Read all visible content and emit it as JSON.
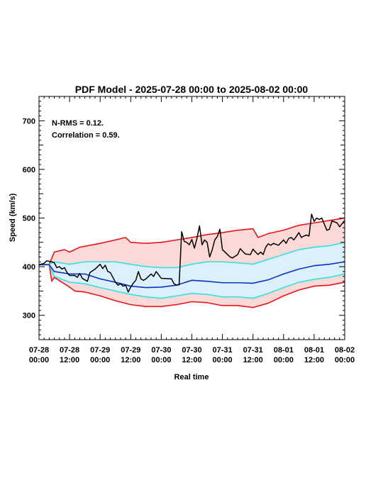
{
  "chart_data": {
    "type": "line",
    "title": "PDF Model - 2025-07-28 00:00 to 2025-08-02 00:00",
    "xlabel": "Real time",
    "ylabel": "Speed (km/s)",
    "xlim": [
      "2025-07-28 00:00",
      "2025-08-02 00:00"
    ],
    "ylim": [
      250,
      750
    ],
    "yticks": [
      300,
      400,
      500,
      600,
      700
    ],
    "xticks": [
      {
        "line1": "07-28",
        "line2": "00:00",
        "t": "2025-07-28 00:00"
      },
      {
        "line1": "07-28",
        "line2": "12:00",
        "t": "2025-07-28 12:00"
      },
      {
        "line1": "07-29",
        "line2": "00:00",
        "t": "2025-07-29 00:00"
      },
      {
        "line1": "07-29",
        "line2": "12:00",
        "t": "2025-07-29 12:00"
      },
      {
        "line1": "07-30",
        "line2": "00:00",
        "t": "2025-07-30 00:00"
      },
      {
        "line1": "07-30",
        "line2": "12:00",
        "t": "2025-07-30 12:00"
      },
      {
        "line1": "07-31",
        "line2": "00:00",
        "t": "2025-07-31 00:00"
      },
      {
        "line1": "07-31",
        "line2": "12:00",
        "t": "2025-07-31 12:00"
      },
      {
        "line1": "08-01",
        "line2": "00:00",
        "t": "2025-08-01 00:00"
      },
      {
        "line1": "08-01",
        "line2": "12:00",
        "t": "2025-08-01 12:00"
      },
      {
        "line1": "08-02",
        "line2": "00:00",
        "t": "2025-08-02 00:00"
      }
    ],
    "annotations": [
      "N-RMS = 0.12.",
      "Correlation = 0.59."
    ],
    "grid": false,
    "colors": {
      "outer_band": "#e8141c",
      "outer_fill": "#fbd9d6",
      "inner_band": "#33e0e0",
      "inner_fill": "#dcf0fb",
      "median": "#1030c0",
      "observed": "#000000"
    },
    "series": [
      {
        "role": "outer_upper",
        "color": "#e8141c",
        "points": [
          [
            "2025-07-28 00:00",
            404
          ],
          [
            "2025-07-28 04:00",
            405
          ],
          [
            "2025-07-28 06:00",
            430
          ],
          [
            "2025-07-28 10:00",
            435
          ],
          [
            "2025-07-28 12:00",
            430
          ],
          [
            "2025-07-28 16:00",
            440
          ],
          [
            "2025-07-29 00:00",
            448
          ],
          [
            "2025-07-29 06:00",
            455
          ],
          [
            "2025-07-29 10:00",
            460
          ],
          [
            "2025-07-29 12:00",
            450
          ],
          [
            "2025-07-29 18:00",
            448
          ],
          [
            "2025-07-30 00:00",
            450
          ],
          [
            "2025-07-30 06:00",
            455
          ],
          [
            "2025-07-30 12:00",
            460
          ],
          [
            "2025-07-30 18:00",
            466
          ],
          [
            "2025-07-31 00:00",
            470
          ],
          [
            "2025-07-31 06:00",
            475
          ],
          [
            "2025-07-31 12:00",
            478
          ],
          [
            "2025-07-31 14:00",
            460
          ],
          [
            "2025-07-31 18:00",
            468
          ],
          [
            "2025-08-01 00:00",
            475
          ],
          [
            "2025-08-01 06:00",
            485
          ],
          [
            "2025-08-01 12:00",
            490
          ],
          [
            "2025-08-01 18:00",
            495
          ],
          [
            "2025-08-02 00:00",
            500
          ]
        ]
      },
      {
        "role": "inner_upper",
        "color": "#33e0e0",
        "points": [
          [
            "2025-07-28 00:00",
            404
          ],
          [
            "2025-07-28 04:00",
            405
          ],
          [
            "2025-07-28 06:00",
            410
          ],
          [
            "2025-07-28 12:00",
            405
          ],
          [
            "2025-07-28 18:00",
            410
          ],
          [
            "2025-07-29 00:00",
            410
          ],
          [
            "2025-07-29 06:00",
            410
          ],
          [
            "2025-07-29 12:00",
            405
          ],
          [
            "2025-07-29 18:00",
            400
          ],
          [
            "2025-07-30 00:00",
            398
          ],
          [
            "2025-07-30 06:00",
            398
          ],
          [
            "2025-07-30 12:00",
            405
          ],
          [
            "2025-07-30 18:00",
            410
          ],
          [
            "2025-07-31 00:00",
            410
          ],
          [
            "2025-07-31 06:00",
            408
          ],
          [
            "2025-07-31 12:00",
            405
          ],
          [
            "2025-07-31 18:00",
            415
          ],
          [
            "2025-08-01 00:00",
            425
          ],
          [
            "2025-08-01 06:00",
            435
          ],
          [
            "2025-08-01 12:00",
            440
          ],
          [
            "2025-08-01 18:00",
            443
          ],
          [
            "2025-08-02 00:00",
            450
          ]
        ]
      },
      {
        "role": "median",
        "color": "#1030c0",
        "points": [
          [
            "2025-07-28 00:00",
            404
          ],
          [
            "2025-07-28 04:00",
            404
          ],
          [
            "2025-07-28 06:00",
            390
          ],
          [
            "2025-07-28 12:00",
            385
          ],
          [
            "2025-07-28 18:00",
            385
          ],
          [
            "2025-07-29 00:00",
            375
          ],
          [
            "2025-07-29 06:00",
            368
          ],
          [
            "2025-07-29 12:00",
            360
          ],
          [
            "2025-07-29 18:00",
            357
          ],
          [
            "2025-07-30 00:00",
            358
          ],
          [
            "2025-07-30 06:00",
            362
          ],
          [
            "2025-07-30 12:00",
            372
          ],
          [
            "2025-07-30 18:00",
            370
          ],
          [
            "2025-07-31 00:00",
            367
          ],
          [
            "2025-07-31 06:00",
            367
          ],
          [
            "2025-07-31 12:00",
            366
          ],
          [
            "2025-07-31 18:00",
            373
          ],
          [
            "2025-08-01 00:00",
            385
          ],
          [
            "2025-08-01 06:00",
            395
          ],
          [
            "2025-08-01 12:00",
            402
          ],
          [
            "2025-08-01 18:00",
            405
          ],
          [
            "2025-08-02 00:00",
            410
          ]
        ]
      },
      {
        "role": "inner_lower",
        "color": "#33e0e0",
        "points": [
          [
            "2025-07-28 00:00",
            404
          ],
          [
            "2025-07-28 04:00",
            404
          ],
          [
            "2025-07-28 06:00",
            380
          ],
          [
            "2025-07-28 12:00",
            368
          ],
          [
            "2025-07-28 18:00",
            365
          ],
          [
            "2025-07-29 00:00",
            357
          ],
          [
            "2025-07-29 06:00",
            350
          ],
          [
            "2025-07-29 12:00",
            343
          ],
          [
            "2025-07-29 18:00",
            338
          ],
          [
            "2025-07-30 00:00",
            335
          ],
          [
            "2025-07-30 06:00",
            340
          ],
          [
            "2025-07-30 12:00",
            345
          ],
          [
            "2025-07-30 18:00",
            343
          ],
          [
            "2025-07-31 00:00",
            338
          ],
          [
            "2025-07-31 06:00",
            338
          ],
          [
            "2025-07-31 12:00",
            335
          ],
          [
            "2025-07-31 18:00",
            345
          ],
          [
            "2025-08-01 00:00",
            357
          ],
          [
            "2025-08-01 06:00",
            368
          ],
          [
            "2025-08-01 12:00",
            374
          ],
          [
            "2025-08-01 18:00",
            378
          ],
          [
            "2025-08-02 00:00",
            385
          ]
        ]
      },
      {
        "role": "outer_lower",
        "color": "#e8141c",
        "points": [
          [
            "2025-07-28 00:00",
            404
          ],
          [
            "2025-07-28 04:00",
            404
          ],
          [
            "2025-07-28 05:00",
            370
          ],
          [
            "2025-07-28 06:00",
            378
          ],
          [
            "2025-07-28 12:00",
            358
          ],
          [
            "2025-07-28 14:00",
            350
          ],
          [
            "2025-07-28 18:00",
            348
          ],
          [
            "2025-07-29 00:00",
            340
          ],
          [
            "2025-07-29 06:00",
            330
          ],
          [
            "2025-07-29 12:00",
            322
          ],
          [
            "2025-07-29 18:00",
            318
          ],
          [
            "2025-07-30 00:00",
            318
          ],
          [
            "2025-07-30 06:00",
            322
          ],
          [
            "2025-07-30 12:00",
            328
          ],
          [
            "2025-07-30 18:00",
            326
          ],
          [
            "2025-07-31 00:00",
            320
          ],
          [
            "2025-07-31 06:00",
            320
          ],
          [
            "2025-07-31 12:00",
            316
          ],
          [
            "2025-07-31 18:00",
            325
          ],
          [
            "2025-08-01 00:00",
            340
          ],
          [
            "2025-08-01 06:00",
            352
          ],
          [
            "2025-08-01 12:00",
            360
          ],
          [
            "2025-08-01 18:00",
            362
          ],
          [
            "2025-08-02 00:00",
            368
          ]
        ]
      },
      {
        "role": "observed",
        "color": "#000000",
        "points": [
          [
            "2025-07-28 00:00",
            404
          ],
          [
            "2025-07-28 02:00",
            407
          ],
          [
            "2025-07-28 03:00",
            412
          ],
          [
            "2025-07-28 05:00",
            410
          ],
          [
            "2025-07-28 06:00",
            408
          ],
          [
            "2025-07-28 07:00",
            398
          ],
          [
            "2025-07-28 08:00",
            400
          ],
          [
            "2025-07-28 09:00",
            395
          ],
          [
            "2025-07-28 10:00",
            398
          ],
          [
            "2025-07-28 11:00",
            388
          ],
          [
            "2025-07-28 12:00",
            382
          ],
          [
            "2025-07-28 14:00",
            382
          ],
          [
            "2025-07-28 15:00",
            378
          ],
          [
            "2025-07-28 16:00",
            386
          ],
          [
            "2025-07-28 17:00",
            376
          ],
          [
            "2025-07-28 19:00",
            370
          ],
          [
            "2025-07-28 20:00",
            388
          ],
          [
            "2025-07-28 22:00",
            395
          ],
          [
            "2025-07-29 00:00",
            405
          ],
          [
            "2025-07-29 01:00",
            396
          ],
          [
            "2025-07-29 02:00",
            403
          ],
          [
            "2025-07-29 03:00",
            390
          ],
          [
            "2025-07-29 04:00",
            388
          ],
          [
            "2025-07-29 06:00",
            368
          ],
          [
            "2025-07-29 07:00",
            362
          ],
          [
            "2025-07-29 08:00",
            365
          ],
          [
            "2025-07-29 09:00",
            360
          ],
          [
            "2025-07-29 10:00",
            362
          ],
          [
            "2025-07-29 11:00",
            348
          ],
          [
            "2025-07-29 12:00",
            358
          ],
          [
            "2025-07-29 13:00",
            366
          ],
          [
            "2025-07-29 14:00",
            372
          ],
          [
            "2025-07-29 15:00",
            390
          ],
          [
            "2025-07-29 16:00",
            375
          ],
          [
            "2025-07-29 17:00",
            372
          ],
          [
            "2025-07-29 18:00",
            375
          ],
          [
            "2025-07-29 19:00",
            380
          ],
          [
            "2025-07-29 20:00",
            385
          ],
          [
            "2025-07-29 21:00",
            380
          ],
          [
            "2025-07-29 22:00",
            390
          ],
          [
            "2025-07-30 00:00",
            376
          ],
          [
            "2025-07-30 04:00",
            375
          ],
          [
            "2025-07-30 05:00",
            365
          ],
          [
            "2025-07-30 06:00",
            362
          ],
          [
            "2025-07-30 07:00",
            363
          ],
          [
            "2025-07-30 08:00",
            472
          ],
          [
            "2025-07-30 09:00",
            452
          ],
          [
            "2025-07-30 10:00",
            450
          ],
          [
            "2025-07-30 11:00",
            445
          ],
          [
            "2025-07-30 12:00",
            456
          ],
          [
            "2025-07-30 13:00",
            438
          ],
          [
            "2025-07-30 14:00",
            458
          ],
          [
            "2025-07-30 15:00",
            484
          ],
          [
            "2025-07-30 16:00",
            445
          ],
          [
            "2025-07-30 17:00",
            455
          ],
          [
            "2025-07-30 18:00",
            450
          ],
          [
            "2025-07-30 19:00",
            420
          ],
          [
            "2025-07-30 20:00",
            435
          ],
          [
            "2025-07-30 21:00",
            455
          ],
          [
            "2025-07-30 22:00",
            462
          ],
          [
            "2025-07-30 23:00",
            477
          ],
          [
            "2025-07-31 00:00",
            435
          ],
          [
            "2025-07-31 02:00",
            425
          ],
          [
            "2025-07-31 03:00",
            420
          ],
          [
            "2025-07-31 04:00",
            418
          ],
          [
            "2025-07-31 06:00",
            425
          ],
          [
            "2025-07-31 07:00",
            437
          ],
          [
            "2025-07-31 09:00",
            426
          ],
          [
            "2025-07-31 11:00",
            425
          ],
          [
            "2025-07-31 12:00",
            436
          ],
          [
            "2025-07-31 13:00",
            430
          ],
          [
            "2025-07-31 14:00",
            425
          ],
          [
            "2025-07-31 15:00",
            430
          ],
          [
            "2025-07-31 16:00",
            425
          ],
          [
            "2025-07-31 17:00",
            440
          ],
          [
            "2025-07-31 18:00",
            447
          ],
          [
            "2025-07-31 19:00",
            444
          ],
          [
            "2025-07-31 20:00",
            448
          ],
          [
            "2025-07-31 22:00",
            444
          ],
          [
            "2025-08-01 00:00",
            455
          ],
          [
            "2025-08-01 01:00",
            448
          ],
          [
            "2025-08-01 02:00",
            458
          ],
          [
            "2025-08-01 03:00",
            460
          ],
          [
            "2025-08-01 04:00",
            455
          ],
          [
            "2025-08-01 05:00",
            462
          ],
          [
            "2025-08-01 06:00",
            470
          ],
          [
            "2025-08-01 07:00",
            460
          ],
          [
            "2025-08-01 08:00",
            463
          ],
          [
            "2025-08-01 09:00",
            465
          ],
          [
            "2025-08-01 10:00",
            463
          ],
          [
            "2025-08-01 11:00",
            508
          ],
          [
            "2025-08-01 12:00",
            493
          ],
          [
            "2025-08-01 13:00",
            500
          ],
          [
            "2025-08-01 14:00",
            497
          ],
          [
            "2025-08-01 15:00",
            500
          ],
          [
            "2025-08-01 17:00",
            475
          ],
          [
            "2025-08-01 18:00",
            477
          ],
          [
            "2025-08-01 19:00",
            494
          ],
          [
            "2025-08-01 21:00",
            490
          ],
          [
            "2025-08-01 22:00",
            482
          ],
          [
            "2025-08-02 00:00",
            495
          ]
        ]
      }
    ]
  }
}
